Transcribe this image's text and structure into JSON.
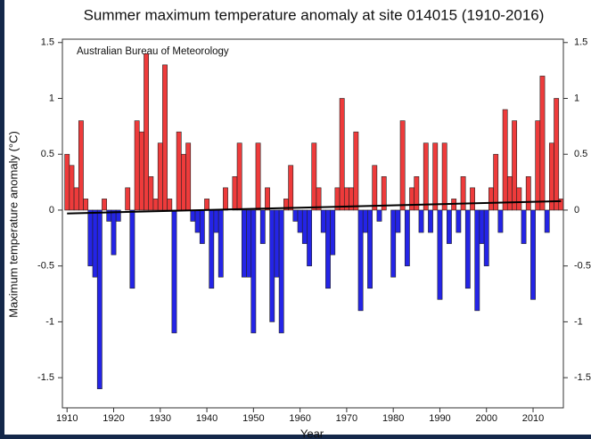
{
  "chart_data": {
    "type": "bar",
    "title": "Summer maximum temperature anomaly at site 014015 (1910-2016)",
    "annotation": "Australian Bureau of Meteorology",
    "x_label": "Year",
    "y_label": "Maximum temperature anomaly (°C)",
    "x": [
      1910,
      1911,
      1912,
      1913,
      1914,
      1915,
      1916,
      1917,
      1918,
      1919,
      1920,
      1921,
      1922,
      1923,
      1924,
      1925,
      1926,
      1927,
      1928,
      1929,
      1930,
      1931,
      1932,
      1933,
      1934,
      1935,
      1936,
      1937,
      1938,
      1939,
      1940,
      1941,
      1942,
      1943,
      1944,
      1945,
      1946,
      1947,
      1948,
      1949,
      1950,
      1951,
      1952,
      1953,
      1954,
      1955,
      1956,
      1957,
      1958,
      1959,
      1960,
      1961,
      1962,
      1963,
      1964,
      1965,
      1966,
      1967,
      1968,
      1969,
      1970,
      1971,
      1972,
      1973,
      1974,
      1975,
      1976,
      1977,
      1978,
      1979,
      1980,
      1981,
      1982,
      1983,
      1984,
      1985,
      1986,
      1987,
      1988,
      1989,
      1990,
      1991,
      1992,
      1993,
      1994,
      1995,
      1996,
      1997,
      1998,
      1999,
      2000,
      2001,
      2002,
      2003,
      2004,
      2005,
      2006,
      2007,
      2008,
      2009,
      2010,
      2011,
      2012,
      2013,
      2014,
      2015,
      2016
    ],
    "values": [
      0.5,
      0.4,
      0.2,
      0.8,
      0.1,
      -0.5,
      -0.6,
      -1.6,
      0.1,
      -0.1,
      -0.4,
      -0.1,
      0,
      0.2,
      -0.7,
      0.8,
      0.7,
      1.4,
      0.3,
      0.1,
      0.6,
      1.3,
      0.1,
      -1.1,
      0.7,
      0.5,
      0.6,
      -0.1,
      -0.2,
      -0.3,
      0.1,
      -0.7,
      -0.2,
      -0.6,
      0.2,
      0,
      0.3,
      0.6,
      -0.6,
      -0.6,
      -1.1,
      0.6,
      -0.3,
      0.2,
      -1.0,
      -0.6,
      -1.1,
      0.1,
      0.4,
      -0.1,
      -0.2,
      -0.3,
      -0.5,
      0.6,
      0.2,
      -0.2,
      -0.7,
      -0.4,
      0.2,
      1.0,
      0.2,
      0.2,
      0.7,
      -0.9,
      -0.2,
      -0.7,
      0.4,
      -0.1,
      0.3,
      0,
      -0.6,
      -0.2,
      0.8,
      -0.5,
      0.2,
      0.3,
      -0.2,
      0.6,
      -0.2,
      0.6,
      -0.8,
      0.6,
      -0.3,
      0.1,
      -0.2,
      0.3,
      -0.7,
      0.2,
      -0.9,
      -0.3,
      -0.5,
      0.2,
      0.5,
      -0.2,
      0.9,
      0.3,
      0.8,
      0.2,
      -0.3,
      0.3,
      -0.8,
      0.8,
      1.2,
      -0.2,
      0.6,
      1.0,
      0.1
    ],
    "positive_color": "#ee3b3b",
    "negative_color": "#2424e6",
    "trend": {
      "x": [
        1910,
        2016
      ],
      "values": [
        -0.03,
        0.08
      ],
      "color": "#000000"
    },
    "xlim": [
      1909,
      2016.5
    ],
    "xticks": [
      1910,
      1920,
      1930,
      1940,
      1950,
      1960,
      1970,
      1980,
      1990,
      2000,
      2010
    ],
    "ylim": [
      -1.77,
      1.53
    ],
    "yticks": [
      -1.5,
      -1,
      -0.5,
      0,
      0.5,
      1,
      1.5
    ],
    "right_axis": true
  }
}
